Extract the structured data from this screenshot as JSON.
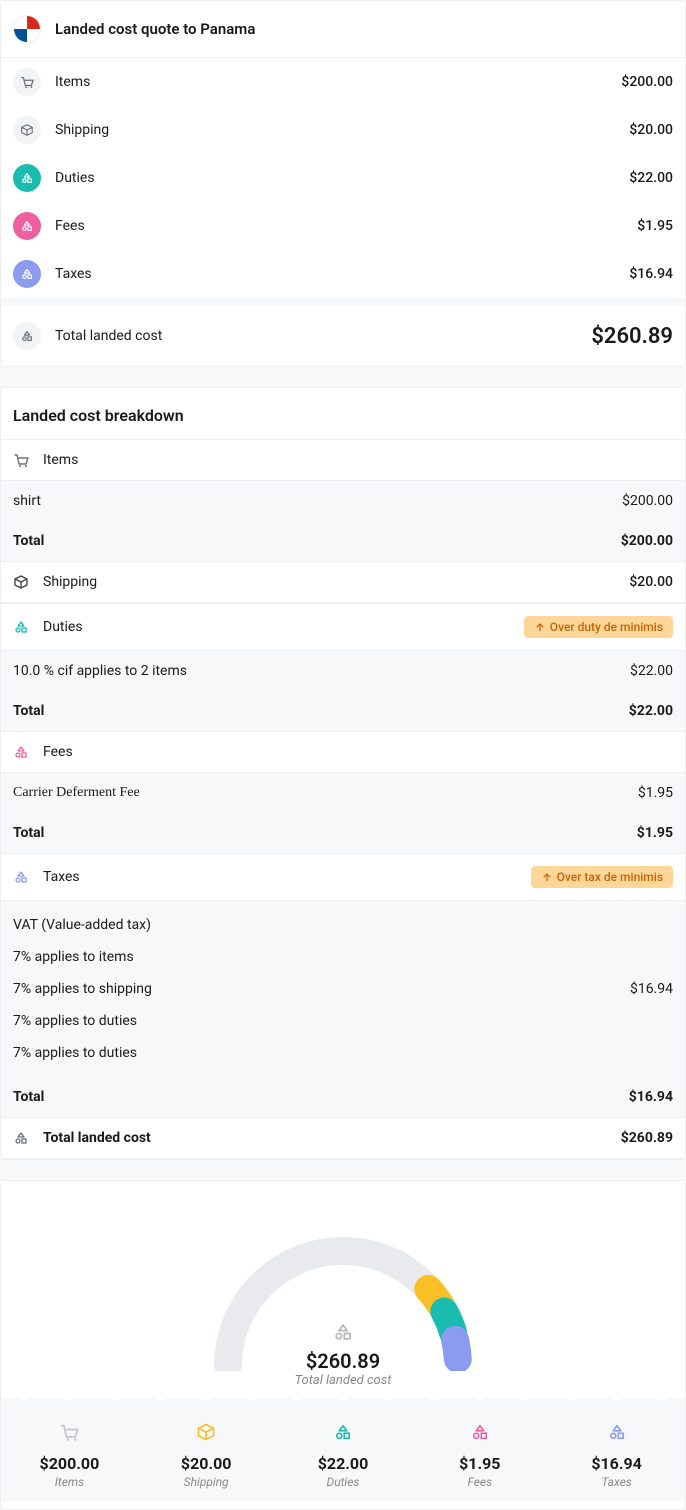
{
  "header": {
    "title": "Landed cost quote to Panama"
  },
  "colors": {
    "teal": "#1abcb0",
    "pink": "#ec5fa1",
    "purple": "#8b9cf0",
    "yellow": "#f8c024",
    "gray_icon": "#9aa0ab",
    "gray_bg": "#f1f3f5",
    "badge_bg": "#ffd699",
    "badge_text": "#c86400"
  },
  "summary": {
    "items": {
      "label": "Items",
      "value": "$200.00"
    },
    "shipping": {
      "label": "Shipping",
      "value": "$20.00"
    },
    "duties": {
      "label": "Duties",
      "value": "$22.00"
    },
    "fees": {
      "label": "Fees",
      "value": "$1.95"
    },
    "taxes": {
      "label": "Taxes",
      "value": "$16.94"
    },
    "total": {
      "label": "Total landed cost",
      "value": "$260.89"
    }
  },
  "breakdown": {
    "title": "Landed cost breakdown",
    "items": {
      "header": "Items",
      "line": {
        "label": "shirt",
        "value": "$200.00"
      },
      "total": {
        "label": "Total",
        "value": "$200.00"
      }
    },
    "shipping": {
      "header": "Shipping",
      "value": "$20.00"
    },
    "duties": {
      "header": "Duties",
      "badge": "Over duty de minimis",
      "line": {
        "label": "10.0 % cif applies to 2 items",
        "value": "$22.00"
      },
      "total": {
        "label": "Total",
        "value": "$22.00"
      }
    },
    "fees": {
      "header": "Fees",
      "line": {
        "label": "Carrier Deferment Fee",
        "value": "$1.95"
      },
      "total": {
        "label": "Total",
        "value": "$1.95"
      }
    },
    "taxes": {
      "header": "Taxes",
      "badge": "Over tax de minimis",
      "lines": [
        {
          "label": "VAT (Value-added tax)",
          "value": ""
        },
        {
          "label": "7% applies to items",
          "value": ""
        },
        {
          "label": "7% applies to shipping",
          "value": "$16.94"
        },
        {
          "label": "7% applies to duties",
          "value": ""
        },
        {
          "label": "7% applies to duties",
          "value": ""
        }
      ],
      "total": {
        "label": "Total",
        "value": "$16.94"
      }
    },
    "grand": {
      "label": "Total landed cost",
      "value": "$260.89"
    }
  },
  "gauge": {
    "total": "$260.89",
    "sub": "Total landed cost",
    "segments": [
      {
        "color": "#e9eaed",
        "fraction": 0.766
      },
      {
        "color": "#f8c024",
        "fraction": 0.077
      },
      {
        "color": "#1abcb0",
        "fraction": 0.084
      },
      {
        "color": "#8b9cf0",
        "fraction": 0.0075
      },
      {
        "color": "#8b9cf0",
        "fraction": 0.065
      }
    ],
    "track_width": 28
  },
  "stats": [
    {
      "label": "Items",
      "value": "$200.00",
      "icon": "cart",
      "color": "#c2c6d0"
    },
    {
      "label": "Shipping",
      "value": "$20.00",
      "icon": "box",
      "color": "#f8c024"
    },
    {
      "label": "Duties",
      "value": "$22.00",
      "icon": "nodes",
      "color": "#1abcb0"
    },
    {
      "label": "Fees",
      "value": "$1.95",
      "icon": "nodes",
      "color": "#ec5fa1"
    },
    {
      "label": "Taxes",
      "value": "$16.94",
      "icon": "nodes",
      "color": "#8b9cf0"
    }
  ]
}
